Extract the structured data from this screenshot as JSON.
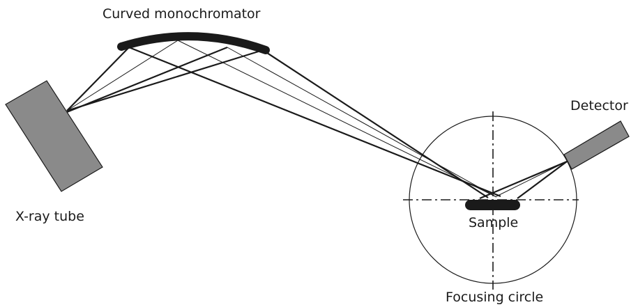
{
  "labels": {
    "monochromator": "Curved monochromator",
    "detector": "Detector",
    "xray_tube": "X-ray tube",
    "sample": "Sample",
    "focusing_circle": "Focusing circle"
  },
  "colors": {
    "component_fill": "#8a8a8a",
    "line": "#1a1a1a",
    "background": "#ffffff"
  }
}
